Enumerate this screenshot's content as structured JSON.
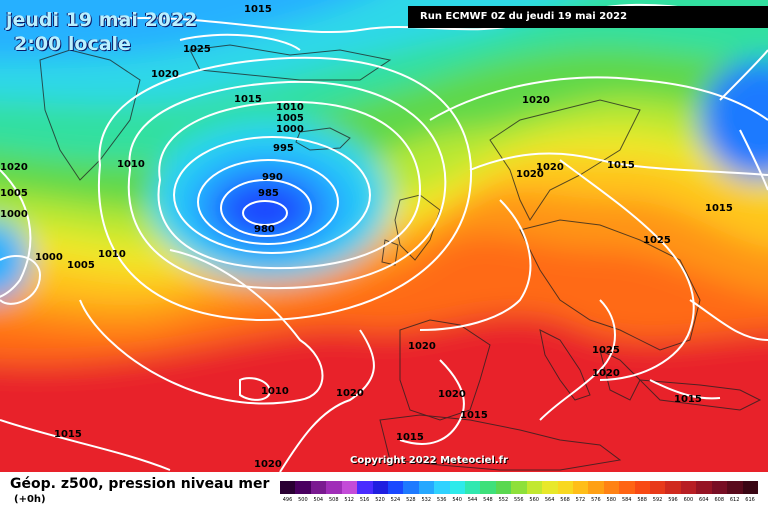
{
  "header": {
    "date_line": "jeudi 19 mai 2022",
    "time_line": "2:00 locale",
    "run_info": "Run ECMWF 0Z du jeudi 19 mai 2022"
  },
  "map": {
    "copyright": "Copyright 2022 Meteociel.fr",
    "low_center": "Dépression centrée au sud de l'Islande, minimum 980 hPa",
    "isobar_labels": [
      "1015",
      "1025",
      "1020",
      "1015",
      "1010",
      "1005",
      "1000",
      "995",
      "990",
      "985",
      "980",
      "1020",
      "1020",
      "1020",
      "1015",
      "1015",
      "1010",
      "1005",
      "1000",
      "1000",
      "1005",
      "1010",
      "1025",
      "1025",
      "1020",
      "1020",
      "1015",
      "1010",
      "1020",
      "1020",
      "1015",
      "1015",
      "1015",
      "1020",
      "1020"
    ]
  },
  "footer": {
    "parameter_title": "Géop. z500, pression niveau mer",
    "forecast_step": "(+0h)",
    "scale_labels": [
      "496",
      "500",
      "504",
      "508",
      "512",
      "516",
      "520",
      "524",
      "528",
      "532",
      "536",
      "540",
      "544",
      "548",
      "552",
      "556",
      "560",
      "564",
      "568",
      "572",
      "576",
      "580",
      "584",
      "588",
      "592",
      "596",
      "600",
      "604",
      "608",
      "612",
      "616"
    ],
    "scale_colors": [
      "#2a0033",
      "#4a0060",
      "#7a1a90",
      "#a02eb8",
      "#c44cd8",
      "#4a2cff",
      "#1f1fe0",
      "#1a48ff",
      "#1e7aff",
      "#25a8ff",
      "#2fd2ff",
      "#2eeaea",
      "#30e8b0",
      "#3ee07a",
      "#5ad850",
      "#8ee03a",
      "#c2e830",
      "#e8e82a",
      "#f8d820",
      "#ffbe18",
      "#ffa014",
      "#ff8214",
      "#ff6414",
      "#f84a14",
      "#e83a1a",
      "#d02a1e",
      "#b81e24",
      "#961424",
      "#780e24",
      "#5a0a1c",
      "#3a0614"
    ]
  }
}
